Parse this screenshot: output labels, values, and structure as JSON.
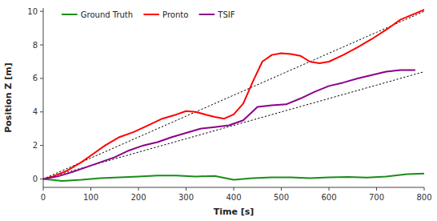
{
  "chart_data": {
    "type": "line",
    "xlabel": "Time [s]",
    "ylabel": "Position Z [m]",
    "xlim": [
      0,
      800
    ],
    "ylim": [
      -0.5,
      10.2
    ],
    "xticks": [
      0,
      100,
      200,
      300,
      400,
      500,
      600,
      700,
      800
    ],
    "yticks": [
      0,
      2,
      4,
      6,
      8,
      10
    ],
    "legend": "upper left",
    "series": [
      {
        "color": "#000000",
        "line_style": "dotted",
        "x": [
          0,
          100,
          200,
          300,
          400,
          500,
          600,
          700,
          800
        ],
        "values": [
          0.0,
          1.25,
          2.5,
          3.75,
          5.0,
          6.25,
          7.5,
          8.75,
          10.0
        ]
      },
      {
        "color": "#000000",
        "line_style": "dotted",
        "x": [
          0,
          100,
          200,
          300,
          400,
          500,
          600,
          700,
          800
        ],
        "values": [
          0.0,
          0.8,
          1.6,
          2.4,
          3.2,
          4.0,
          4.8,
          5.6,
          6.4
        ]
      },
      {
        "name": "Ground Truth",
        "color": "#1a8c1a",
        "line_style": "solid",
        "x": [
          0,
          40,
          80,
          120,
          160,
          200,
          240,
          280,
          320,
          360,
          400,
          440,
          480,
          520,
          560,
          600,
          640,
          680,
          720,
          760,
          800
        ],
        "values": [
          0.0,
          -0.12,
          -0.05,
          0.05,
          0.1,
          0.15,
          0.2,
          0.2,
          0.15,
          0.18,
          -0.05,
          0.05,
          0.1,
          0.1,
          0.05,
          0.1,
          0.12,
          0.08,
          0.15,
          0.28,
          0.32
        ]
      },
      {
        "name": "Pronto",
        "color": "#ff0000",
        "line_style": "solid",
        "x": [
          0,
          20,
          50,
          80,
          100,
          130,
          160,
          190,
          220,
          250,
          280,
          300,
          320,
          340,
          360,
          380,
          400,
          420,
          440,
          460,
          480,
          500,
          520,
          540,
          560,
          580,
          600,
          630,
          660,
          690,
          720,
          750,
          775,
          800
        ],
        "values": [
          0.0,
          0.15,
          0.5,
          1.0,
          1.4,
          2.0,
          2.5,
          2.8,
          3.2,
          3.6,
          3.85,
          4.05,
          4.0,
          3.85,
          3.7,
          3.6,
          3.85,
          4.5,
          5.8,
          7.0,
          7.4,
          7.5,
          7.45,
          7.35,
          7.0,
          6.9,
          7.0,
          7.4,
          7.85,
          8.35,
          8.9,
          9.5,
          9.8,
          10.1
        ]
      },
      {
        "name": "TSIF",
        "color": "#8b008b",
        "line_style": "solid",
        "x": [
          0,
          30,
          60,
          90,
          120,
          150,
          180,
          210,
          240,
          270,
          300,
          330,
          360,
          390,
          420,
          450,
          480,
          510,
          540,
          570,
          600,
          630,
          660,
          690,
          720,
          750,
          780
        ],
        "values": [
          0.0,
          0.15,
          0.4,
          0.7,
          1.0,
          1.3,
          1.7,
          2.0,
          2.2,
          2.5,
          2.75,
          3.0,
          3.1,
          3.2,
          3.5,
          4.3,
          4.4,
          4.45,
          4.8,
          5.2,
          5.55,
          5.75,
          6.0,
          6.2,
          6.4,
          6.5,
          6.5
        ]
      }
    ]
  }
}
